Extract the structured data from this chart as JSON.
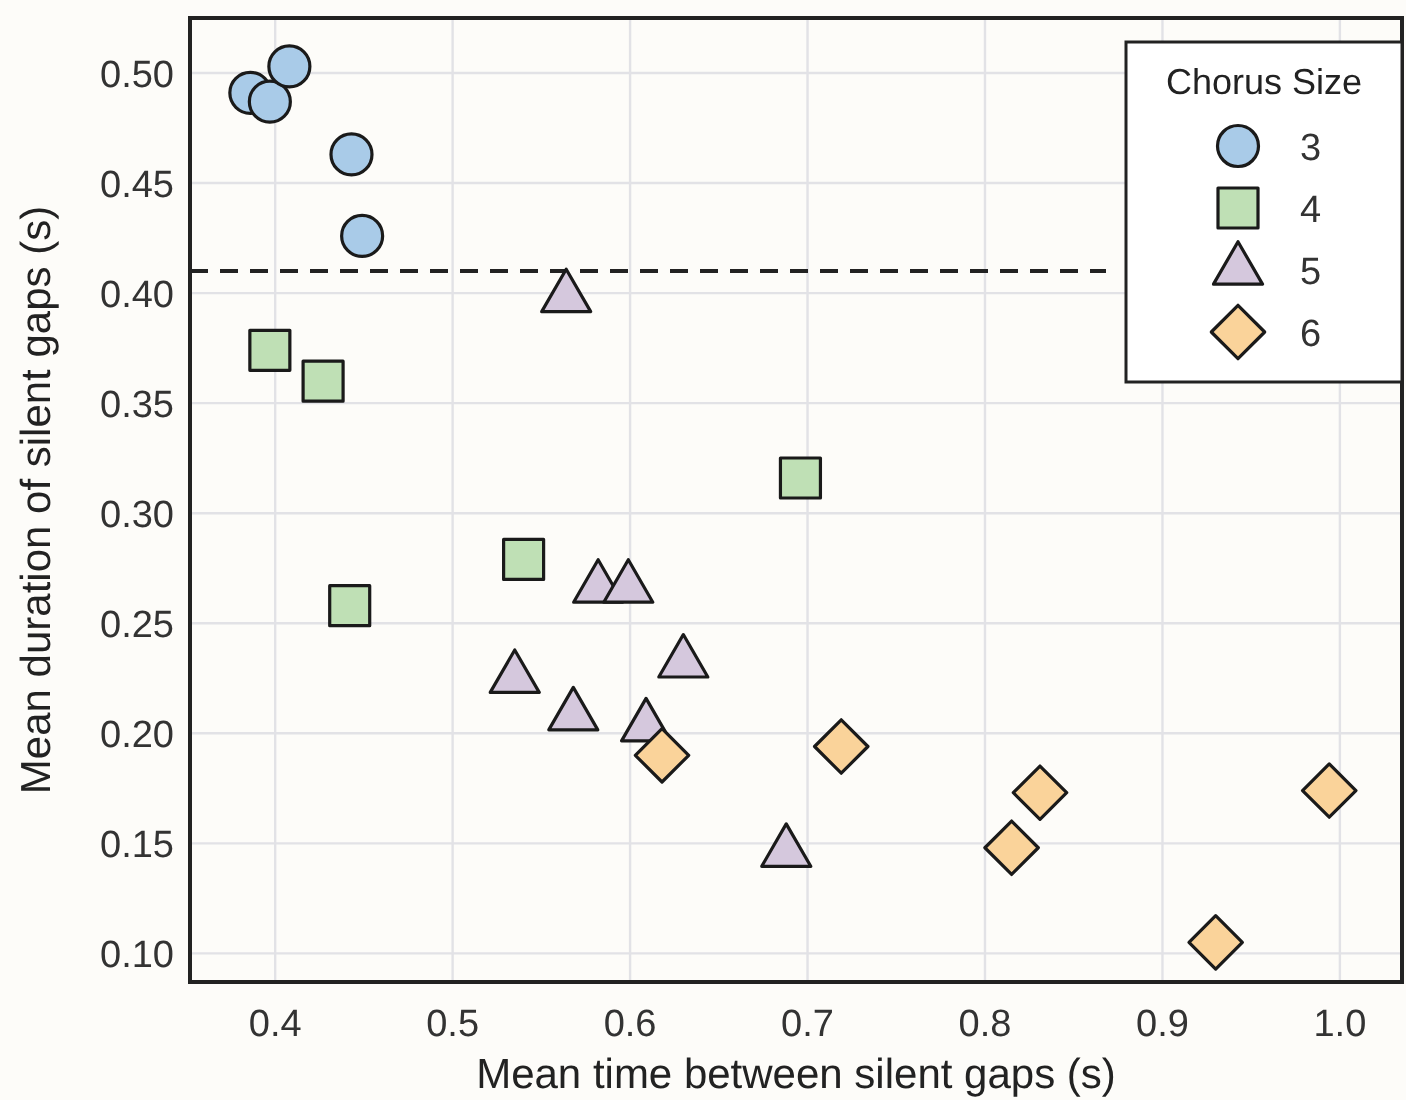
{
  "chart_data": {
    "type": "scatter",
    "xlabel": "Mean time between silent gaps (s)",
    "ylabel": "Mean duration of silent gaps (s)",
    "legend_title": "Chorus Size",
    "legend": "top right",
    "grid": true,
    "xlim": [
      0.352,
      1.035
    ],
    "xticks": [
      {
        "value": 0.4,
        "label": "0.4"
      },
      {
        "value": 0.5,
        "label": "0.5"
      },
      {
        "value": 0.6,
        "label": "0.6"
      },
      {
        "value": 0.7,
        "label": "0.7"
      },
      {
        "value": 0.8,
        "label": "0.8"
      },
      {
        "value": 0.9,
        "label": "0.9"
      },
      {
        "value": 1.0,
        "label": "1.0"
      }
    ],
    "ylim": [
      0.087,
      0.525
    ],
    "yticks": [
      {
        "value": 0.1,
        "label": "0.10"
      },
      {
        "value": 0.15,
        "label": "0.15"
      },
      {
        "value": 0.2,
        "label": "0.20"
      },
      {
        "value": 0.25,
        "label": "0.25"
      },
      {
        "value": 0.3,
        "label": "0.30"
      },
      {
        "value": 0.35,
        "label": "0.35"
      },
      {
        "value": 0.4,
        "label": "0.40"
      },
      {
        "value": 0.45,
        "label": "0.45"
      },
      {
        "value": 0.5,
        "label": "0.50"
      }
    ],
    "ref_lines": [
      {
        "axis": "y",
        "value": 0.41,
        "line_style": "dashed",
        "color": "#222222"
      }
    ],
    "series": [
      {
        "name": "3",
        "color": "#a9cbe8",
        "marker": "circle",
        "x": [
          0.386,
          0.397,
          0.408,
          0.443,
          0.449
        ],
        "values": [
          0.491,
          0.487,
          0.503,
          0.463,
          0.426
        ]
      },
      {
        "name": "4",
        "color": "#bfe0b5",
        "marker": "square",
        "x": [
          0.397,
          0.427,
          0.442,
          0.54,
          0.696
        ],
        "values": [
          0.374,
          0.36,
          0.258,
          0.279,
          0.316
        ]
      },
      {
        "name": "5",
        "color": "#d5c8dd",
        "marker": "triangle",
        "x": [
          0.564,
          0.582,
          0.599,
          0.535,
          0.568,
          0.609,
          0.63,
          0.688
        ],
        "values": [
          0.398,
          0.266,
          0.266,
          0.225,
          0.208,
          0.203,
          0.232,
          0.146
        ]
      },
      {
        "name": "6",
        "color": "#fad39a",
        "marker": "diamond",
        "x": [
          0.618,
          0.719,
          0.831,
          0.815,
          0.93,
          0.994
        ],
        "values": [
          0.19,
          0.194,
          0.173,
          0.148,
          0.105,
          0.174
        ]
      }
    ]
  }
}
